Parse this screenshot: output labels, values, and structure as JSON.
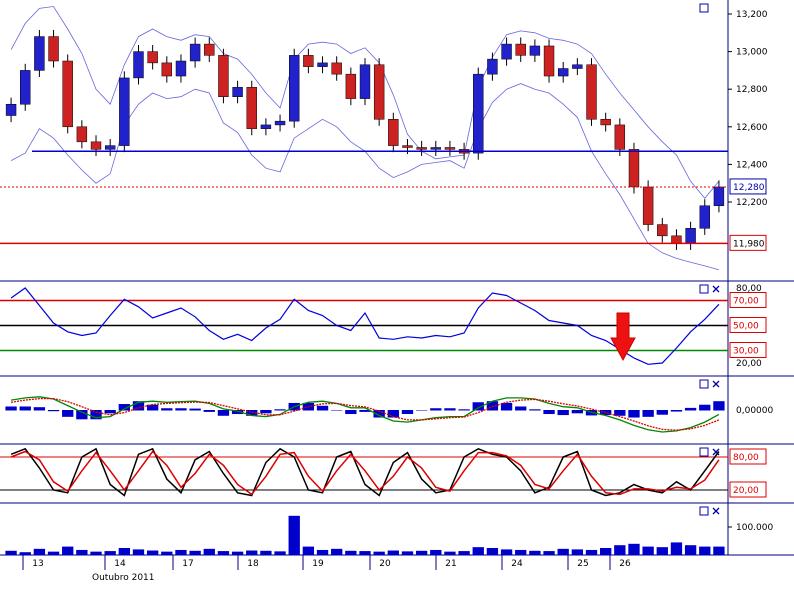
{
  "chart_data": {
    "type": "candlestick",
    "x_axis": {
      "day_labels": [
        "13",
        "14",
        "17",
        "18",
        "19",
        "20",
        "21",
        "24",
        "25",
        "26"
      ],
      "month_label": "Outubro 2011"
    },
    "panels": [
      {
        "name": "price",
        "y_ticks": [
          "13,200",
          "13,000",
          "12,800",
          "12,600",
          "12,400",
          "12,200"
        ],
        "ylim": [
          11900,
          13270
        ],
        "last_value_label": "12,280",
        "last_value": 12280,
        "resistance": 12470,
        "support": 11980,
        "support_label": "11,980",
        "series": [
          {
            "name": "close",
            "style": "candles",
            "values": [
              12720,
              12900,
              13080,
              12950,
              12600,
              12520,
              12480,
              12500,
              12860,
              13000,
              12940,
              12870,
              12950,
              13040,
              12980,
              12760,
              12810,
              12590,
              12610,
              12630,
              12980,
              12920,
              12940,
              12880,
              12750,
              12930,
              12640,
              12500,
              12490,
              12480,
              12490,
              12480,
              12460,
              12880,
              12960,
              13040,
              12980,
              13030,
              12870,
              12910,
              12930,
              12640,
              12610,
              12480,
              12280,
              12080,
              12020,
              11980,
              12060,
              12180,
              12280
            ]
          },
          {
            "name": "upper_band",
            "style": "line",
            "values": [
              13010,
              13150,
              13230,
              13240,
              13120,
              12990,
              12800,
              12720,
              12930,
              13080,
              13120,
              13080,
              13060,
              13090,
              13080,
              12990,
              12960,
              12880,
              12780,
              12700,
              12960,
              13040,
              13050,
              13040,
              12990,
              13020,
              12940,
              12770,
              12560,
              12470,
              12430,
              12440,
              12450,
              12810,
              12970,
              13090,
              13110,
              13100,
              13070,
              13060,
              13040,
              12990,
              12880,
              12780,
              12690,
              12600,
              12520,
              12450,
              12310,
              12220,
              12310
            ]
          },
          {
            "name": "lower_band",
            "style": "line",
            "values": [
              12420,
              12460,
              12590,
              12540,
              12450,
              12370,
              12300,
              12350,
              12610,
              12720,
              12780,
              12750,
              12760,
              12800,
              12780,
              12620,
              12570,
              12450,
              12380,
              12360,
              12540,
              12590,
              12640,
              12600,
              12520,
              12470,
              12380,
              12330,
              12360,
              12400,
              12410,
              12420,
              12380,
              12590,
              12730,
              12800,
              12830,
              12800,
              12780,
              12720,
              12650,
              12470,
              12350,
              12240,
              12110,
              11980,
              11930,
              11900,
              11880,
              11860,
              11840
            ]
          }
        ]
      },
      {
        "name": "rsi",
        "y_ticks": [
          "80,00",
          "20,00"
        ],
        "ylim": [
          10,
          85
        ],
        "levels": [
          {
            "value": 70,
            "label": "70,00",
            "color": "#dd0000"
          },
          {
            "value": 50,
            "label": "50,00",
            "color": "#000000"
          },
          {
            "value": 30,
            "label": "30,00",
            "color": "#008800"
          }
        ],
        "values": [
          72,
          80,
          66,
          52,
          45,
          42,
          44,
          58,
          71,
          65,
          56,
          60,
          64,
          57,
          46,
          39,
          43,
          38,
          48,
          55,
          71,
          62,
          58,
          50,
          46,
          60,
          40,
          39,
          41,
          40,
          42,
          41,
          44,
          64,
          76,
          74,
          68,
          62,
          54,
          52,
          50,
          42,
          38,
          31,
          24,
          19,
          20,
          32,
          45,
          55,
          67
        ]
      },
      {
        "name": "macd",
        "y_ticks": [
          "0,00000"
        ],
        "ylim": [
          -1.3,
          0.9
        ],
        "series": [
          {
            "name": "macd",
            "color": "#008800",
            "values": [
              0.45,
              0.55,
              0.6,
              0.5,
              0.2,
              -0.1,
              -0.35,
              -0.3,
              0.05,
              0.35,
              0.4,
              0.35,
              0.38,
              0.4,
              0.3,
              0.05,
              -0.05,
              -0.25,
              -0.3,
              -0.2,
              0.15,
              0.35,
              0.4,
              0.3,
              0.1,
              0.1,
              -0.25,
              -0.5,
              -0.55,
              -0.45,
              -0.35,
              -0.3,
              -0.3,
              0.1,
              0.4,
              0.55,
              0.55,
              0.5,
              0.3,
              0.15,
              0.1,
              -0.1,
              -0.25,
              -0.45,
              -0.7,
              -0.9,
              -1.0,
              -0.95,
              -0.8,
              -0.55,
              -0.2
            ]
          },
          {
            "name": "signal",
            "color": "#dd0000",
            "values": [
              0.35,
              0.45,
              0.52,
              0.52,
              0.38,
              0.15,
              -0.1,
              -0.22,
              -0.12,
              0.1,
              0.25,
              0.3,
              0.33,
              0.36,
              0.34,
              0.2,
              0.05,
              -0.1,
              -0.22,
              -0.22,
              -0.05,
              0.15,
              0.28,
              0.3,
              0.2,
              0.14,
              -0.05,
              -0.3,
              -0.45,
              -0.45,
              -0.4,
              -0.35,
              -0.32,
              -0.12,
              0.15,
              0.35,
              0.45,
              0.48,
              0.4,
              0.28,
              0.18,
              0.04,
              -0.12,
              -0.3,
              -0.5,
              -0.72,
              -0.88,
              -0.92,
              -0.86,
              -0.7,
              -0.45
            ]
          }
        ]
      },
      {
        "name": "stochastic",
        "y_ticks": [
          "80,00",
          "20,00"
        ],
        "ylim": [
          0,
          100
        ],
        "levels_labels": [
          "80,00",
          "20,00"
        ],
        "levels": [
          80,
          20
        ],
        "series": [
          {
            "name": "%K",
            "color": "#000000",
            "values": [
              85,
              95,
              60,
              20,
              15,
              80,
              95,
              30,
              10,
              85,
              95,
              40,
              15,
              75,
              90,
              50,
              15,
              10,
              70,
              95,
              80,
              20,
              15,
              80,
              90,
              30,
              10,
              70,
              88,
              40,
              15,
              20,
              80,
              95,
              85,
              80,
              55,
              15,
              25,
              80,
              90,
              20,
              10,
              15,
              30,
              20,
              15,
              35,
              20,
              55,
              90
            ]
          },
          {
            "name": "%D",
            "color": "#dd0000",
            "values": [
              80,
              90,
              75,
              35,
              18,
              55,
              88,
              55,
              20,
              55,
              90,
              65,
              25,
              50,
              85,
              65,
              30,
              12,
              45,
              85,
              88,
              45,
              18,
              55,
              85,
              55,
              20,
              45,
              80,
              60,
              25,
              18,
              55,
              88,
              88,
              82,
              65,
              30,
              22,
              55,
              85,
              45,
              15,
              12,
              22,
              22,
              18,
              25,
              22,
              38,
              75
            ]
          }
        ]
      },
      {
        "name": "volume",
        "y_ticks": [
          "100.000"
        ],
        "ylim": [
          0,
          150000
        ],
        "bar_color": "#0000cc",
        "values": [
          15000,
          10000,
          22000,
          12000,
          30000,
          18000,
          12000,
          14000,
          25000,
          20000,
          16000,
          12000,
          18000,
          15000,
          22000,
          14000,
          12000,
          16000,
          15000,
          13000,
          140000,
          30000,
          18000,
          22000,
          15000,
          14000,
          12000,
          16000,
          13000,
          15000,
          18000,
          12000,
          14000,
          28000,
          25000,
          20000,
          18000,
          15000,
          14000,
          22000,
          20000,
          18000,
          25000,
          35000,
          40000,
          30000,
          28000,
          45000,
          35000,
          30000,
          30000
        ]
      }
    ]
  }
}
